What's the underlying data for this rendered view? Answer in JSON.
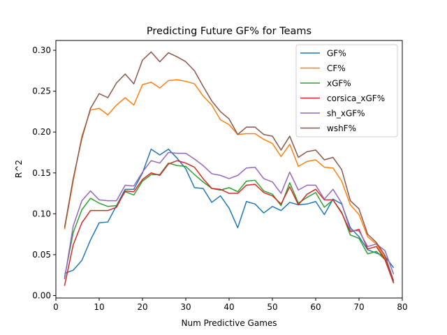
{
  "chart_data": {
    "type": "line",
    "title": "Predicting Future GF% for Teams",
    "xlabel": "Num Predictive Games",
    "ylabel": "R^2",
    "xlim": [
      0,
      80
    ],
    "ylim": [
      -0.003,
      0.312
    ],
    "xticks": [
      0,
      10,
      20,
      30,
      40,
      50,
      60,
      70,
      80
    ],
    "xtick_labels": [
      "0",
      "10",
      "20",
      "30",
      "40",
      "50",
      "60",
      "70",
      "80"
    ],
    "yticks": [
      0.0,
      0.05,
      0.1,
      0.15,
      0.2,
      0.25,
      0.3
    ],
    "ytick_labels": [
      "0.00",
      "0.05",
      "0.10",
      "0.15",
      "0.20",
      "0.25",
      "0.30"
    ],
    "grid": false,
    "legend_position": "top-right",
    "x": [
      2,
      4,
      6,
      8,
      10,
      12,
      14,
      16,
      18,
      20,
      22,
      24,
      26,
      28,
      30,
      32,
      34,
      36,
      38,
      40,
      42,
      44,
      46,
      48,
      50,
      52,
      54,
      56,
      58,
      60,
      62,
      64,
      66,
      68,
      70,
      72,
      74,
      76,
      78
    ],
    "series": [
      {
        "name": "GF%",
        "color": "#1f77b4",
        "values": [
          0.027,
          0.031,
          0.043,
          0.068,
          0.089,
          0.09,
          0.11,
          0.13,
          0.13,
          0.15,
          0.179,
          0.172,
          0.179,
          0.168,
          0.155,
          0.132,
          0.131,
          0.114,
          0.122,
          0.107,
          0.083,
          0.115,
          0.112,
          0.101,
          0.109,
          0.104,
          0.114,
          0.111,
          0.112,
          0.115,
          0.099,
          0.118,
          0.112,
          0.083,
          0.072,
          0.056,
          0.052,
          0.048,
          0.034
        ]
      },
      {
        "name": "CF%",
        "color": "#ff7f0e",
        "values": [
          0.081,
          0.14,
          0.195,
          0.227,
          0.229,
          0.221,
          0.233,
          0.242,
          0.233,
          0.258,
          0.261,
          0.254,
          0.263,
          0.264,
          0.262,
          0.259,
          0.244,
          0.233,
          0.215,
          0.209,
          0.197,
          0.198,
          0.198,
          0.191,
          0.186,
          0.17,
          0.185,
          0.158,
          0.164,
          0.166,
          0.157,
          0.156,
          0.14,
          0.111,
          0.099,
          0.072,
          0.063,
          0.046,
          0.016
        ]
      },
      {
        "name": "xGF%",
        "color": "#2ca02c",
        "values": [
          0.022,
          0.077,
          0.105,
          0.119,
          0.113,
          0.109,
          0.11,
          0.127,
          0.123,
          0.14,
          0.148,
          0.148,
          0.162,
          0.159,
          0.158,
          0.148,
          0.139,
          0.131,
          0.129,
          0.132,
          0.127,
          0.14,
          0.141,
          0.128,
          0.124,
          0.11,
          0.138,
          0.113,
          0.12,
          0.126,
          0.108,
          0.117,
          0.102,
          0.074,
          0.07,
          0.051,
          0.054,
          0.044,
          0.016
        ]
      },
      {
        "name": "corsica_xGF%",
        "color": "#d62728",
        "values": [
          0.012,
          0.062,
          0.089,
          0.104,
          0.104,
          0.104,
          0.108,
          0.128,
          0.127,
          0.142,
          0.15,
          0.147,
          0.161,
          0.165,
          0.162,
          0.157,
          0.143,
          0.131,
          0.13,
          0.125,
          0.125,
          0.135,
          0.136,
          0.126,
          0.122,
          0.112,
          0.133,
          0.111,
          0.124,
          0.13,
          0.117,
          0.117,
          0.101,
          0.078,
          0.081,
          0.057,
          0.06,
          0.044,
          0.015
        ]
      },
      {
        "name": "sh_xGF%",
        "color": "#9467bd",
        "values": [
          0.02,
          0.085,
          0.116,
          0.128,
          0.117,
          0.116,
          0.116,
          0.135,
          0.134,
          0.151,
          0.165,
          0.162,
          0.175,
          0.174,
          0.174,
          0.167,
          0.159,
          0.149,
          0.147,
          0.143,
          0.147,
          0.156,
          0.157,
          0.143,
          0.139,
          0.125,
          0.151,
          0.129,
          0.135,
          0.135,
          0.118,
          0.13,
          0.113,
          0.08,
          0.079,
          0.06,
          0.063,
          0.055,
          0.026
        ]
      },
      {
        "name": "wshF%",
        "color": "#8c564b",
        "values": [
          0.083,
          0.143,
          0.192,
          0.229,
          0.247,
          0.242,
          0.26,
          0.271,
          0.259,
          0.288,
          0.298,
          0.286,
          0.297,
          0.292,
          0.286,
          0.275,
          0.256,
          0.238,
          0.225,
          0.216,
          0.197,
          0.206,
          0.206,
          0.197,
          0.195,
          0.178,
          0.195,
          0.169,
          0.176,
          0.178,
          0.166,
          0.169,
          0.154,
          0.116,
          0.106,
          0.075,
          0.065,
          0.049,
          0.018
        ]
      }
    ]
  }
}
